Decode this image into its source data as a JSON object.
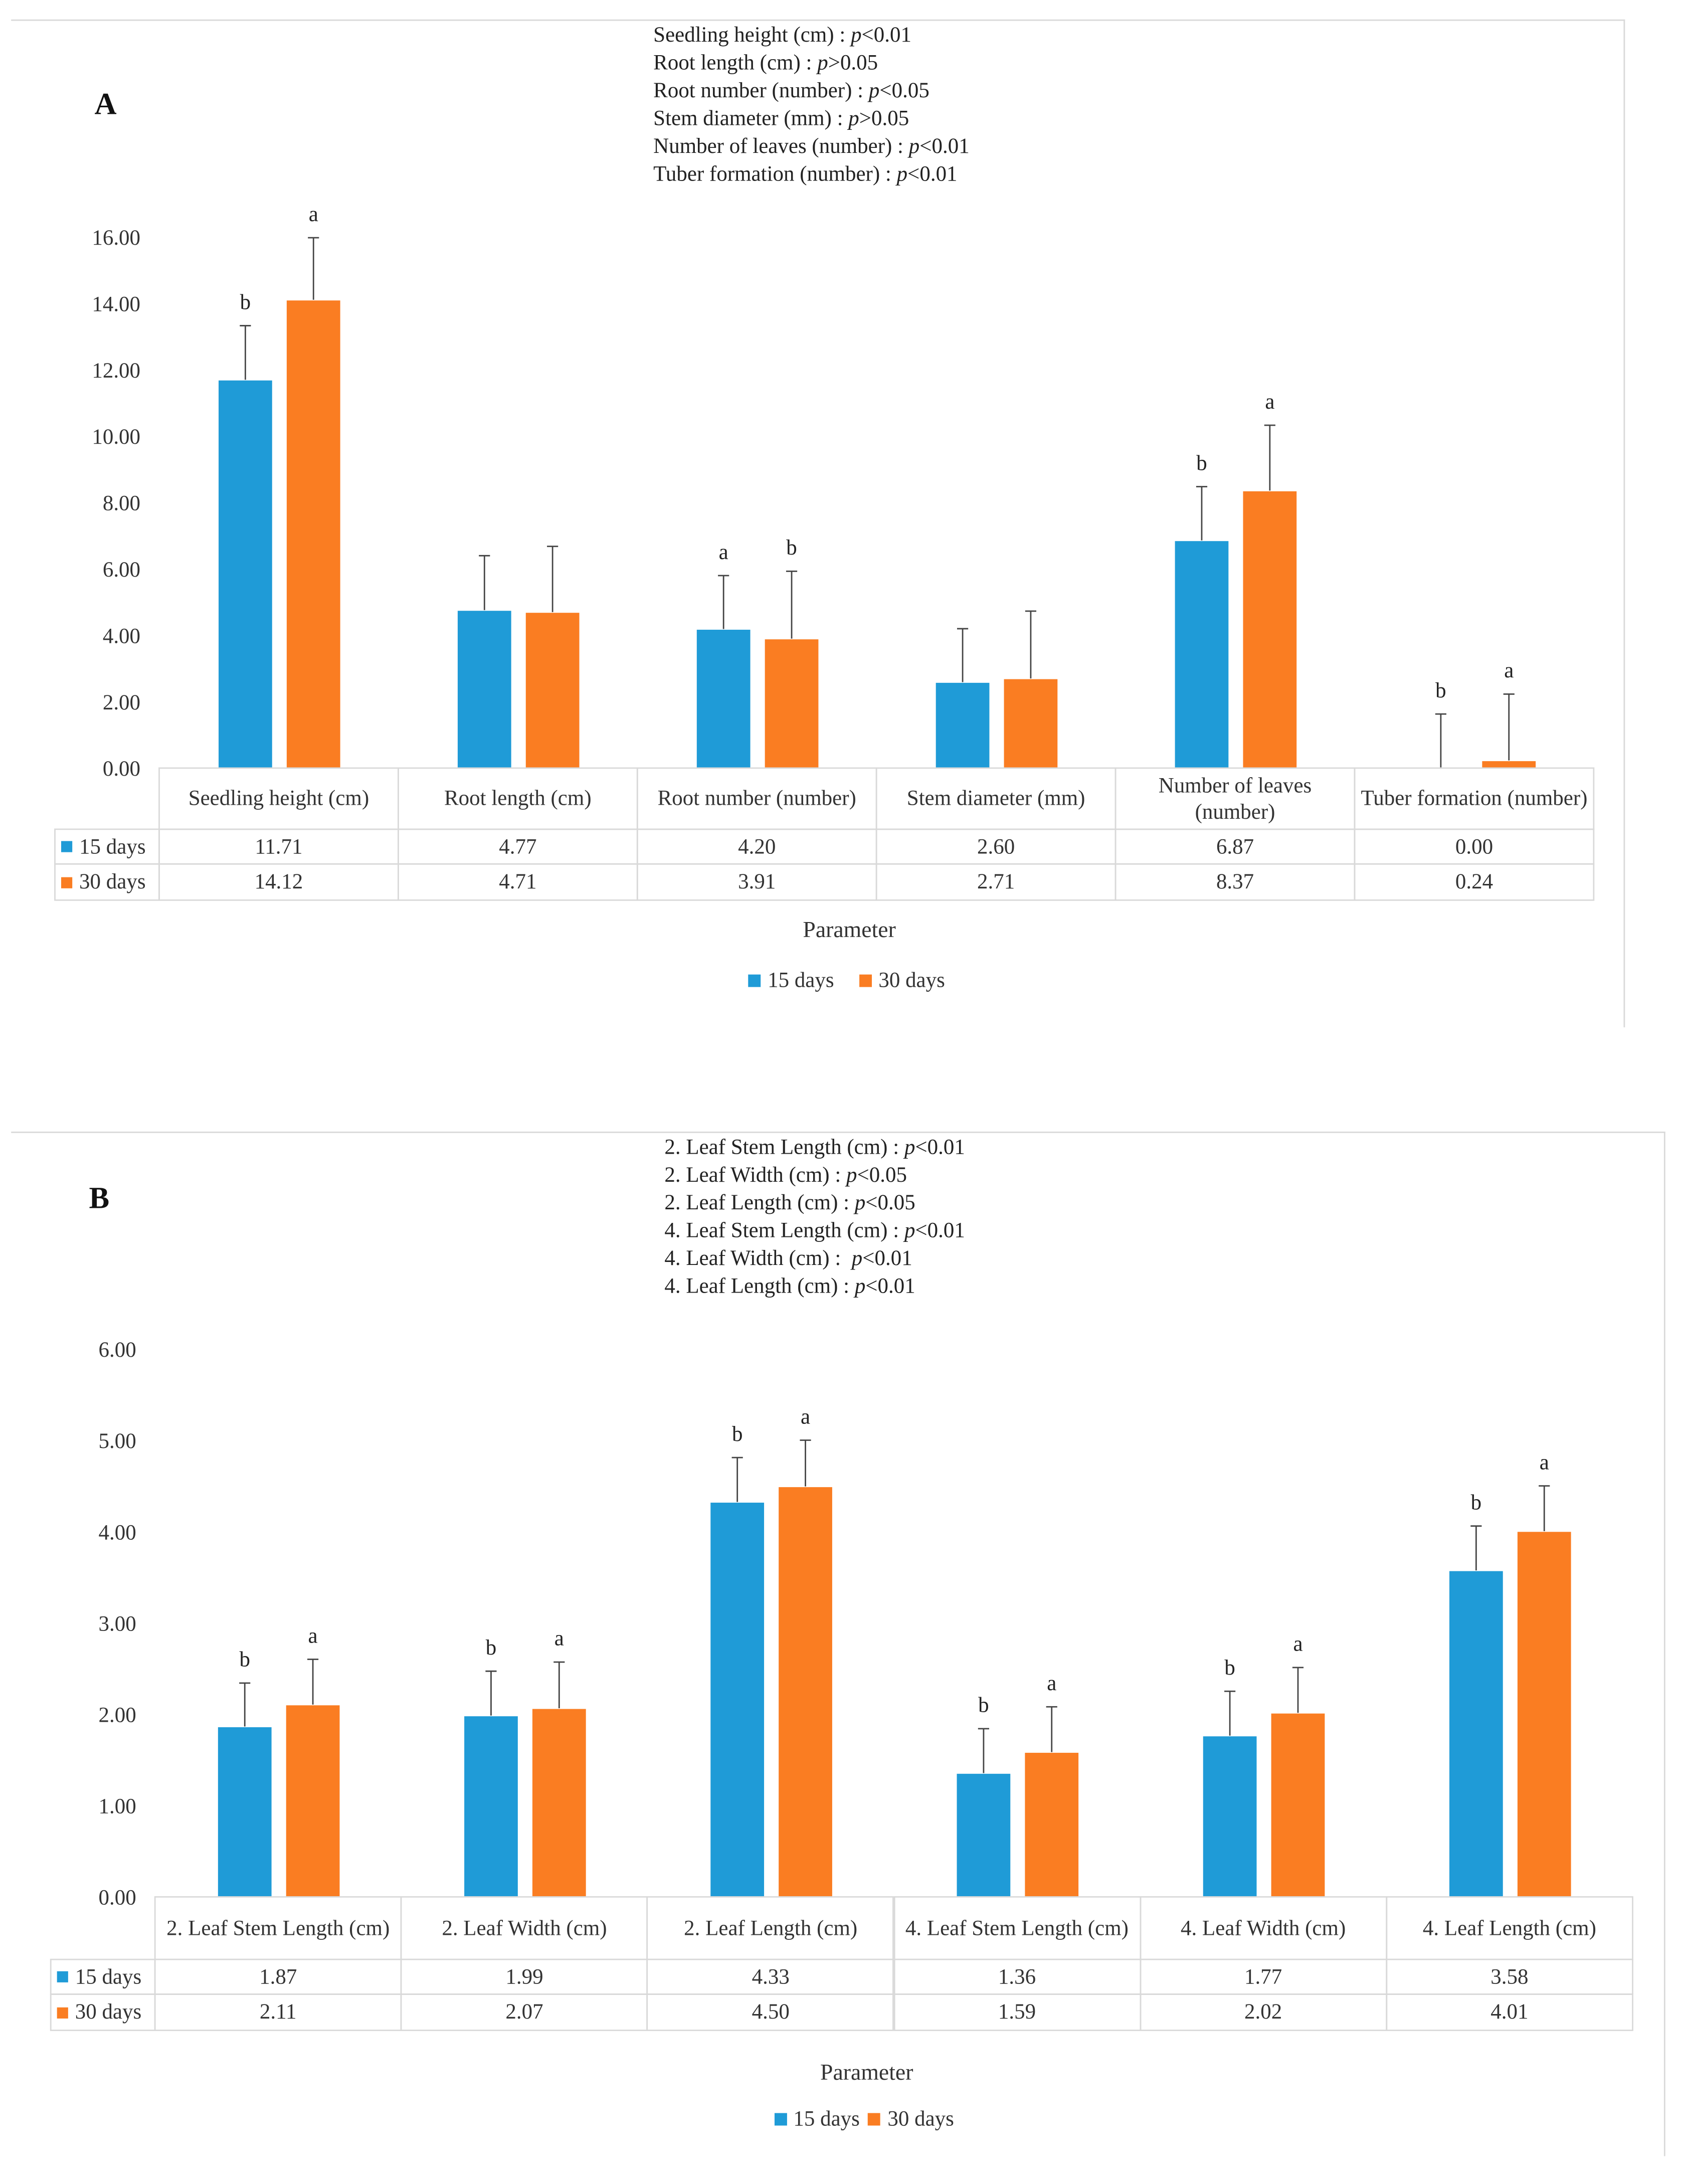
{
  "colors": {
    "15 days": "#1f9bd7",
    "30 days": "#fa7d22"
  },
  "chart_data": [
    {
      "type": "bar",
      "panel": "A",
      "annotations": [
        {
          "label": "Seedling height (cm) : ",
          "p": "p",
          "rest": "<0.01"
        },
        {
          "label": "Root length (cm) : ",
          "p": "p",
          "rest": ">0.05"
        },
        {
          "label": "Root number (number) : ",
          "p": "p",
          "rest": "<0.05"
        },
        {
          "label": "Stem diameter (mm) : ",
          "p": "p",
          "rest": ">0.05"
        },
        {
          "label": "Number of leaves (number) : ",
          "p": "p",
          "rest": "<0.01"
        },
        {
          "label": "Tuber formation (number) : ",
          "p": "p",
          "rest": "<0.01"
        }
      ],
      "categories": [
        "Seedling height (cm)",
        "Root length (cm)",
        "Root number (number)",
        "Stem diameter (mm)",
        "Number of leaves (number)",
        "Tuber formation (number)"
      ],
      "series": [
        {
          "name": "15 days",
          "values": [
            11.71,
            4.77,
            4.2,
            2.6,
            6.87,
            0.0
          ],
          "labels": [
            "11.71",
            "4.77",
            "4.20",
            "2.60",
            "6.87",
            "0.00"
          ],
          "error_top": [
            13.35,
            6.42,
            5.82,
            4.22,
            8.5,
            1.65
          ],
          "letters": [
            "b",
            "",
            "a",
            "",
            "b",
            "b"
          ]
        },
        {
          "name": "30 days",
          "values": [
            14.12,
            4.71,
            3.91,
            2.71,
            8.37,
            0.24
          ],
          "labels": [
            "14.12",
            "4.71",
            "3.91",
            "2.71",
            "8.37",
            "0.24"
          ],
          "error_top": [
            16.0,
            6.7,
            5.95,
            4.75,
            10.35,
            2.25
          ],
          "letters": [
            "a",
            "",
            "b",
            "",
            "a",
            "a"
          ]
        }
      ],
      "yticks": [
        "0.00",
        "2.00",
        "4.00",
        "6.00",
        "8.00",
        "10.00",
        "12.00",
        "14.00",
        "16.00"
      ],
      "ylim": [
        0,
        16
      ],
      "xlabel": "Parameter",
      "ylabel": "",
      "legend": "bottom"
    },
    {
      "type": "bar",
      "panel": "B",
      "annotations": [
        {
          "label": "2. Leaf Stem Length (cm) : ",
          "p": "p",
          "rest": "<0.01"
        },
        {
          "label": "2. Leaf Width (cm) : ",
          "p": "p",
          "rest": "<0.05"
        },
        {
          "label": "2. Leaf Length (cm) : ",
          "p": "p",
          "rest": "<0.05"
        },
        {
          "label": "4. Leaf Stem Length (cm) : ",
          "p": "p",
          "rest": "<0.01"
        },
        {
          "label": "4. Leaf Width (cm) :  ",
          "p": "p",
          "rest": "<0.01"
        },
        {
          "label": "4. Leaf Length (cm) : ",
          "p": "p",
          "rest": "<0.01"
        }
      ],
      "categories": [
        "2. Leaf Stem Length (cm)",
        "2. Leaf Width (cm)",
        "2. Leaf Length (cm)",
        "4. Leaf Stem Length (cm)",
        "4. Leaf Width (cm)",
        "4. Leaf Length (cm)"
      ],
      "series": [
        {
          "name": "15 days",
          "values": [
            1.87,
            1.99,
            4.33,
            1.36,
            1.77,
            3.58
          ],
          "labels": [
            "1.87",
            "1.99",
            "4.33",
            "1.36",
            "1.77",
            "3.58"
          ],
          "error_top": [
            2.35,
            2.48,
            4.82,
            1.85,
            2.26,
            4.07
          ],
          "letters": [
            "b",
            "b",
            "b",
            "b",
            "b",
            "b"
          ]
        },
        {
          "name": "30 days",
          "values": [
            2.11,
            2.07,
            4.5,
            1.59,
            2.02,
            4.01
          ],
          "labels": [
            "2.11",
            "2.07",
            "4.50",
            "1.59",
            "2.02",
            "4.01"
          ],
          "error_top": [
            2.61,
            2.58,
            5.01,
            2.09,
            2.52,
            4.51
          ],
          "letters": [
            "a",
            "a",
            "a",
            "a",
            "a",
            "a"
          ]
        }
      ],
      "yticks": [
        "0.00",
        "1.00",
        "2.00",
        "3.00",
        "4.00",
        "5.00",
        "6.00"
      ],
      "ylim": [
        0,
        6
      ],
      "xlabel": "Parameter",
      "ylabel": "",
      "legend": "bottom"
    }
  ]
}
